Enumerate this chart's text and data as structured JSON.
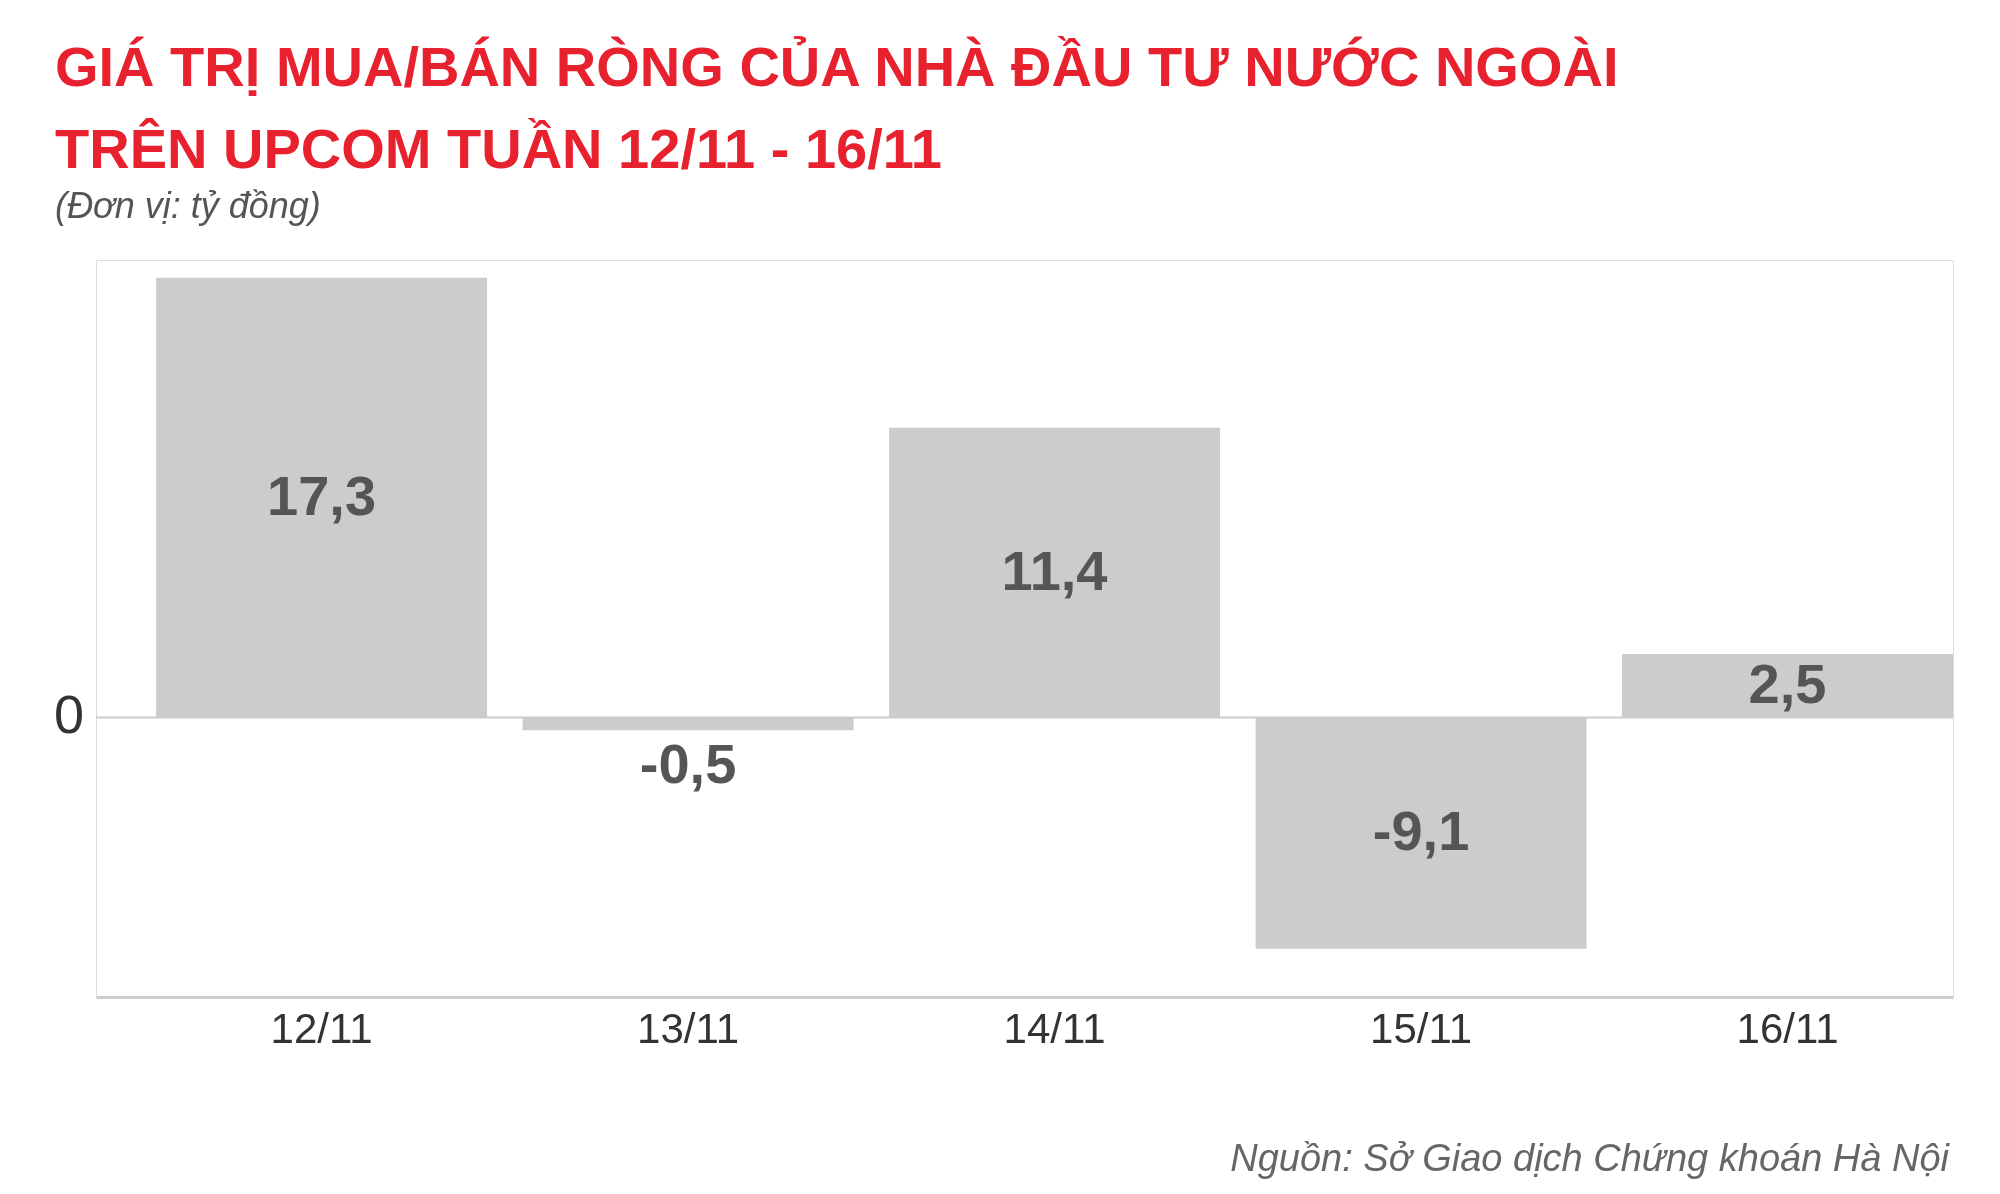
{
  "chart_data": {
    "type": "bar",
    "title": "GIÁ TRỊ MUA/BÁN RÒNG CỦA NHÀ ĐẦU TƯ NƯỚC NGOÀI TRÊN UPCOM TUẦN 12/11 - 16/11",
    "subtitle": "(Đơn vị: tỷ đồng)",
    "categories": [
      "12/11",
      "13/11",
      "14/11",
      "15/11",
      "16/11"
    ],
    "values": [
      17.3,
      -0.5,
      11.4,
      -9.1,
      2.5
    ],
    "value_labels": [
      "17,3",
      "-0,5",
      "11,4",
      "-9,1",
      "2,5"
    ],
    "color": "#cdcbcc",
    "ylim": [
      -11,
      18
    ],
    "ref_lines": [
      {
        "axis": "y",
        "value": 0,
        "label": "0",
        "color": "#cccccc"
      }
    ],
    "annotations": [
      "Nguồn: Sở Giao dịch Chứng khoán Hà Nội"
    ]
  }
}
